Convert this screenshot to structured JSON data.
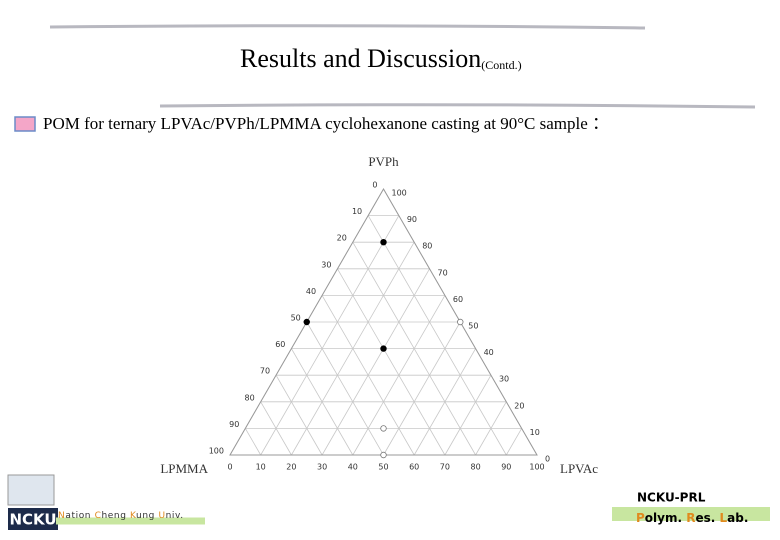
{
  "header": {
    "title": "Results and Discussion",
    "title_suffix": "(Contd.)",
    "subtitle": "POM for ternary  LPVAc/PVPh/LPMMA cyclohexanone casting at 90°C sample ："
  },
  "chart_data": {
    "type": "ternary",
    "top_label": "PVPh",
    "left_label": "LPMMA",
    "right_label": "LPVAc",
    "bottom_ticks": [
      0,
      10,
      20,
      30,
      40,
      50,
      60,
      70,
      80,
      90,
      100
    ],
    "left_ticks": [
      0,
      10,
      20,
      30,
      40,
      50,
      60,
      70,
      80,
      90,
      100
    ],
    "right_ticks": [
      0,
      10,
      20,
      30,
      40,
      50,
      60,
      70,
      80,
      90,
      100
    ],
    "grid": true,
    "points": {
      "pvph": [
        80,
        50,
        40,
        50,
        10,
        0
      ],
      "lpvac": [
        10,
        0,
        30,
        50,
        45,
        50
      ],
      "lpmma": [
        10,
        50,
        30,
        0,
        45,
        50
      ],
      "filled": [
        true,
        true,
        true,
        false,
        false,
        false
      ]
    }
  },
  "footer": {
    "logo": "NCKU",
    "university": [
      "N",
      "ation ",
      "C",
      "heng ",
      "K",
      "ung ",
      "U",
      "niv."
    ],
    "lab_name": "NCKU-PRL",
    "lab": [
      "P",
      "olym. ",
      "R",
      "es. ",
      "L",
      "ab."
    ]
  }
}
